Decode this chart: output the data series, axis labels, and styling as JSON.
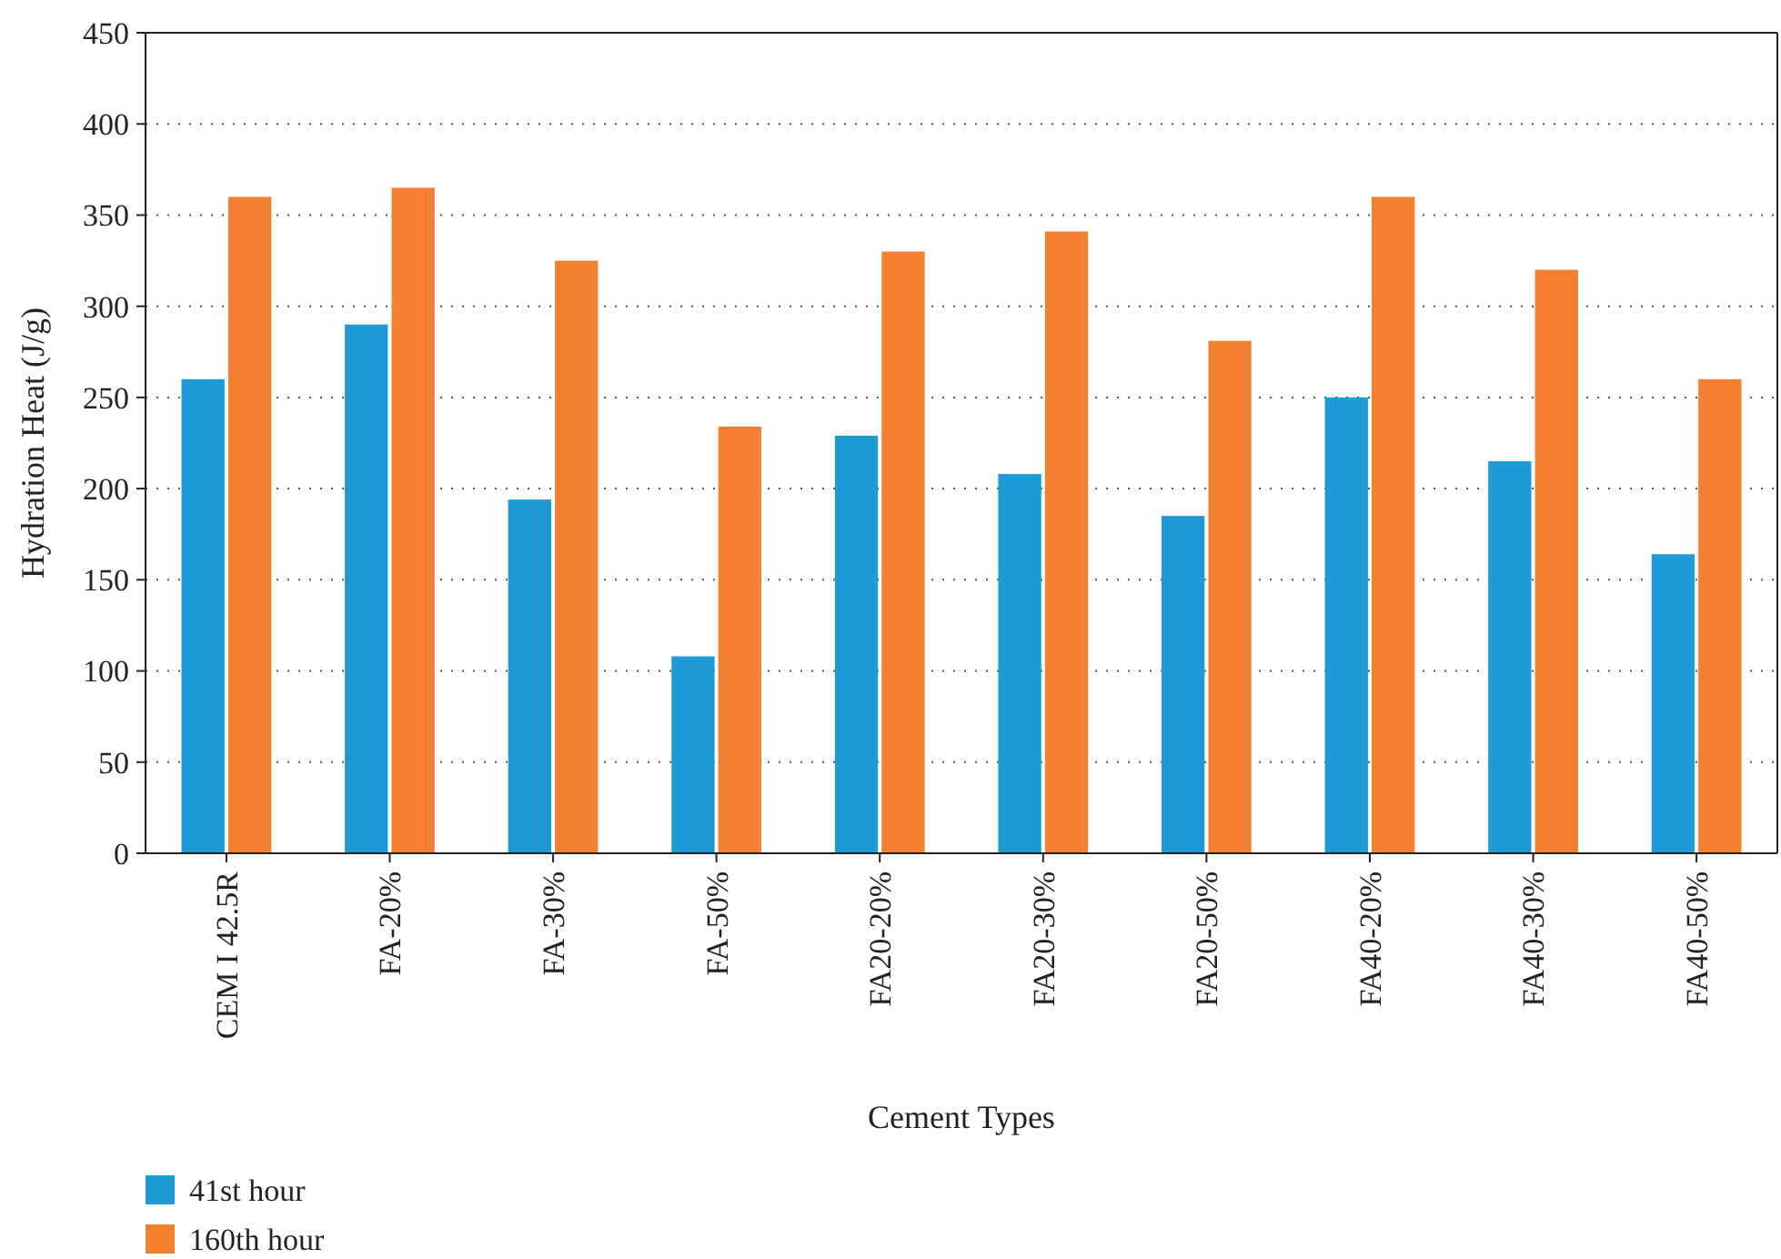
{
  "chart_data": {
    "type": "bar",
    "xlabel": "Cement Types",
    "ylabel": "Hydration Heat (J/g)",
    "categories": [
      "CEM I 42.5R",
      "FA-20%",
      "FA-30%",
      "FA-50%",
      "FA20-20%",
      "FA20-30%",
      "FA20-50%",
      "FA40-20%",
      "FA40-30%",
      "FA40-50%"
    ],
    "series": [
      {
        "name": "41st hour",
        "color": "#1e9ad6",
        "values": [
          260,
          290,
          194,
          108,
          229,
          208,
          185,
          250,
          215,
          164
        ]
      },
      {
        "name": "160th hour",
        "color": "#f28030",
        "values": [
          360,
          365,
          325,
          234,
          330,
          341,
          281,
          360,
          320,
          260
        ]
      }
    ],
    "ylim": [
      0,
      450
    ],
    "yticks": [
      0,
      50,
      100,
      150,
      200,
      250,
      300,
      350,
      400,
      450
    ],
    "grid": "y",
    "legend": "bottom left"
  }
}
